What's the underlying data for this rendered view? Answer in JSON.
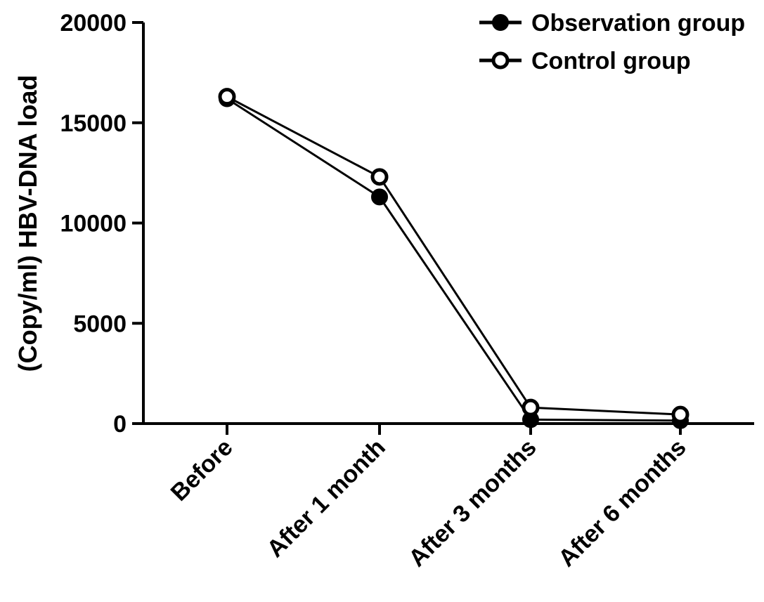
{
  "chart_data": {
    "type": "line",
    "title": "",
    "xlabel": "",
    "ylabel": "(Copy/ml) HBV-DNA load",
    "categories": [
      "Before",
      "After 1 month",
      "After 3 months",
      "After 6 months"
    ],
    "ylim": [
      0,
      20000
    ],
    "yticks": [
      0,
      5000,
      10000,
      15000,
      20000
    ],
    "grid": false,
    "legend_position": "top-right",
    "series": [
      {
        "name": "Observation group",
        "marker": "filled-circle",
        "values": [
          16200,
          11300,
          200,
          150
        ]
      },
      {
        "name": "Control group",
        "marker": "open-circle",
        "values": [
          16300,
          12300,
          800,
          450
        ]
      }
    ],
    "colors": {
      "line": "#000000",
      "background": "#ffffff"
    }
  }
}
